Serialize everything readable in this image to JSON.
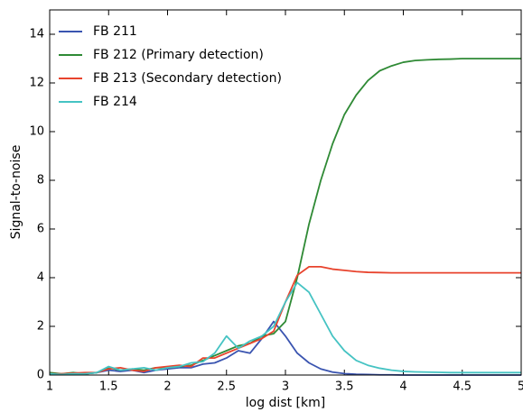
{
  "chart_data": {
    "type": "line",
    "x_label": "log dist [km]",
    "y_label": "Signal-to-noise",
    "x": [
      1.0,
      1.1,
      1.2,
      1.3,
      1.4,
      1.5,
      1.6,
      1.7,
      1.8,
      1.9,
      2.0,
      2.1,
      2.2,
      2.3,
      2.4,
      2.5,
      2.6,
      2.7,
      2.8,
      2.9,
      3.0,
      3.1,
      3.2,
      3.3,
      3.4,
      3.5,
      3.6,
      3.7,
      3.8,
      3.9,
      4.0,
      4.1,
      4.2,
      4.3,
      4.4,
      4.5,
      4.6,
      4.7,
      4.8,
      4.9,
      5.0
    ],
    "series": [
      {
        "name": "FB 211",
        "color": "#3a54b0",
        "values": [
          0.05,
          0.02,
          0.05,
          0.05,
          0.1,
          0.2,
          0.15,
          0.2,
          0.1,
          0.2,
          0.25,
          0.3,
          0.3,
          0.45,
          0.5,
          0.7,
          1.0,
          0.9,
          1.5,
          2.2,
          1.6,
          0.9,
          0.5,
          0.25,
          0.12,
          0.06,
          0.03,
          0.02,
          0.01,
          0.01,
          0,
          0,
          0,
          0,
          0,
          0,
          0,
          0,
          0,
          0,
          0
        ]
      },
      {
        "name": "FB 212 (Primary detection)",
        "color": "#2f8a35",
        "values": [
          0.1,
          0.05,
          0.1,
          0.05,
          0.1,
          0.3,
          0.2,
          0.25,
          0.2,
          0.3,
          0.3,
          0.35,
          0.4,
          0.6,
          0.8,
          1.0,
          1.2,
          1.3,
          1.6,
          1.7,
          2.2,
          4.0,
          6.2,
          8.0,
          9.5,
          10.7,
          11.5,
          12.1,
          12.5,
          12.7,
          12.85,
          12.92,
          12.95,
          12.97,
          12.98,
          13,
          13,
          13,
          13,
          13,
          13
        ]
      },
      {
        "name": "FB 213 (Secondary detection)",
        "color": "#e8432d",
        "values": [
          0.05,
          0.05,
          0.08,
          0.1,
          0.1,
          0.25,
          0.3,
          0.2,
          0.15,
          0.3,
          0.35,
          0.4,
          0.35,
          0.7,
          0.7,
          0.9,
          1.1,
          1.3,
          1.5,
          1.8,
          3.0,
          4.1,
          4.45,
          4.45,
          4.35,
          4.3,
          4.25,
          4.22,
          4.21,
          4.2,
          4.2,
          4.2,
          4.2,
          4.2,
          4.2,
          4.2,
          4.2,
          4.2,
          4.2,
          4.2,
          4.2
        ]
      },
      {
        "name": "FB 214",
        "color": "#45c3c3",
        "values": [
          0.05,
          0.02,
          0.05,
          0.05,
          0.1,
          0.35,
          0.2,
          0.25,
          0.3,
          0.2,
          0.3,
          0.35,
          0.5,
          0.55,
          0.9,
          1.6,
          1.1,
          1.4,
          1.6,
          2.0,
          3.0,
          3.8,
          3.4,
          2.5,
          1.6,
          1.0,
          0.6,
          0.4,
          0.28,
          0.2,
          0.15,
          0.13,
          0.12,
          0.11,
          0.1,
          0.1,
          0.1,
          0.1,
          0.1,
          0.1,
          0.1
        ]
      }
    ],
    "xlim": [
      1,
      5
    ],
    "ylim": [
      0,
      15
    ],
    "xticks": [
      1,
      1.5,
      2,
      2.5,
      3,
      3.5,
      4,
      4.5,
      5
    ],
    "yticks": [
      0,
      2,
      4,
      6,
      8,
      10,
      12,
      14
    ],
    "grid": false,
    "legend": "upper left"
  }
}
